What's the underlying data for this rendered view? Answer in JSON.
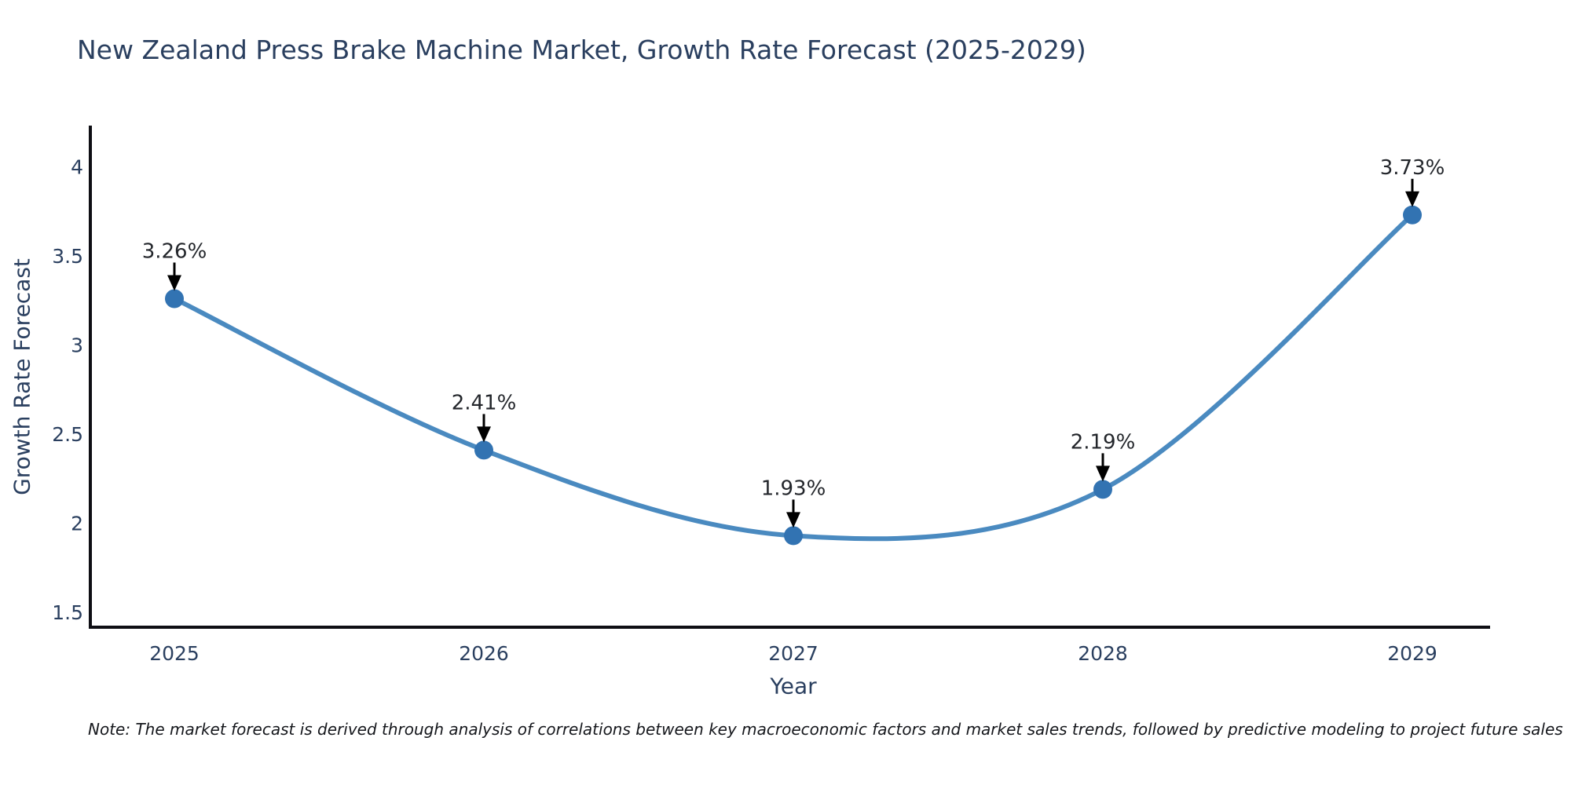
{
  "chart": {
    "title": "New Zealand Press Brake Machine Market, Growth Rate Forecast (2025-2029)",
    "note": "Note: The market forecast is derived through analysis of correlations between key macroeconomic factors and market sales trends, followed by predictive modeling to project future sales"
  },
  "chart_data": {
    "type": "line",
    "title": "New Zealand Press Brake Machine Market, Growth Rate Forecast (2025-2029)",
    "xlabel": "Year",
    "ylabel": "Growth Rate Forecast",
    "x": [
      2025,
      2026,
      2027,
      2028,
      2029
    ],
    "values": [
      3.26,
      2.41,
      1.93,
      2.19,
      3.73
    ],
    "point_labels": [
      "3.26%",
      "2.41%",
      "1.93%",
      "2.19%",
      "3.73%"
    ],
    "x_tick_labels": [
      "2025",
      "2026",
      "2027",
      "2028",
      "2029"
    ],
    "y_ticks": [
      1.5,
      2,
      2.5,
      3,
      3.5,
      4
    ],
    "y_tick_labels": [
      "1.5",
      "2",
      "2.5",
      "3",
      "3.5",
      "4"
    ],
    "ylim": [
      1.42,
      4.22
    ],
    "grid": false,
    "legend": "none",
    "smooth": true,
    "colors": {
      "line": "#4a8ac0",
      "marker": "#3273b2",
      "axis": "#0e0e14",
      "tick_text": "#2a3f5f",
      "annotation_text": "#23262b",
      "annotation_arrow": "#000000",
      "title_text": "#2a3f5f",
      "background": "#ffffff"
    }
  }
}
